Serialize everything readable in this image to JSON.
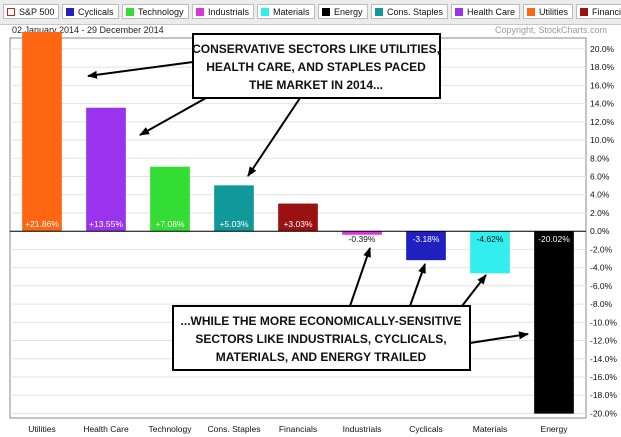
{
  "legend": {
    "items": [
      {
        "label": "S&P 500",
        "color": "#cc2222",
        "hollow": true
      },
      {
        "label": "Cyclicals",
        "color": "#2020c0"
      },
      {
        "label": "Technology",
        "color": "#33dd33"
      },
      {
        "label": "Industrials",
        "color": "#dd33dd"
      },
      {
        "label": "Materials",
        "color": "#33eeee"
      },
      {
        "label": "Energy",
        "color": "#000000"
      },
      {
        "label": "Cons. Staples",
        "color": "#119999"
      },
      {
        "label": "Health Care",
        "color": "#9933ee"
      },
      {
        "label": "Utilities",
        "color": "#ff6611"
      },
      {
        "label": "Financials",
        "color": "#991111"
      }
    ]
  },
  "header": {
    "date_range": "02 January 2014 - 29 December 2014",
    "copyright": "Copyright, StockCharts.com"
  },
  "callouts": {
    "top": [
      "CONSERVATIVE SECTORS LIKE UTILITIES,",
      "HEALTH CARE, AND STAPLES PACED",
      "THE MARKET IN 2014..."
    ],
    "bottom": [
      "...WHILE THE MORE ECONOMICALLY-SENSITIVE",
      "SECTORS LIKE INDUSTRIALS, CYCLICALS,",
      "MATERIALS, AND ENERGY TRAILED"
    ]
  },
  "chart_data": {
    "type": "bar",
    "categories": [
      "Utilities",
      "Health Care",
      "Technology",
      "Cons. Staples",
      "Financials",
      "Industrials",
      "Cyclicals",
      "Materials",
      "Energy"
    ],
    "values": [
      21.86,
      13.55,
      7.08,
      5.03,
      3.03,
      -0.39,
      -3.18,
      -4.62,
      -20.02
    ],
    "value_labels": [
      "+21.86%",
      "+13.55%",
      "+7.08%",
      "+5.03%",
      "+3.03%",
      "-0.39%",
      "-3.18%",
      "-4.62%",
      "-20.02%"
    ],
    "colors": [
      "#ff6611",
      "#9933ee",
      "#33dd33",
      "#119999",
      "#991111",
      "#dd33dd",
      "#2020c0",
      "#33eeee",
      "#000000"
    ],
    "label_colors": [
      "#ffffff",
      "#ffffff",
      "#ffffff",
      "#ffffff",
      "#ffffff",
      "#111111",
      "#ffffff",
      "#111111",
      "#ffffff"
    ],
    "yticks": [
      "20.0%",
      "18.0%",
      "16.0%",
      "14.0%",
      "12.0%",
      "10.0%",
      "8.0%",
      "6.0%",
      "4.0%",
      "2.0%",
      "0.0%",
      "-2.0%",
      "-4.0%",
      "-6.0%",
      "-8.0%",
      "-10.0%",
      "-12.0%",
      "-14.0%",
      "-16.0%",
      "-18.0%",
      "-20.0%"
    ],
    "ylim": [
      -20.5,
      21.2
    ],
    "grid": true
  }
}
